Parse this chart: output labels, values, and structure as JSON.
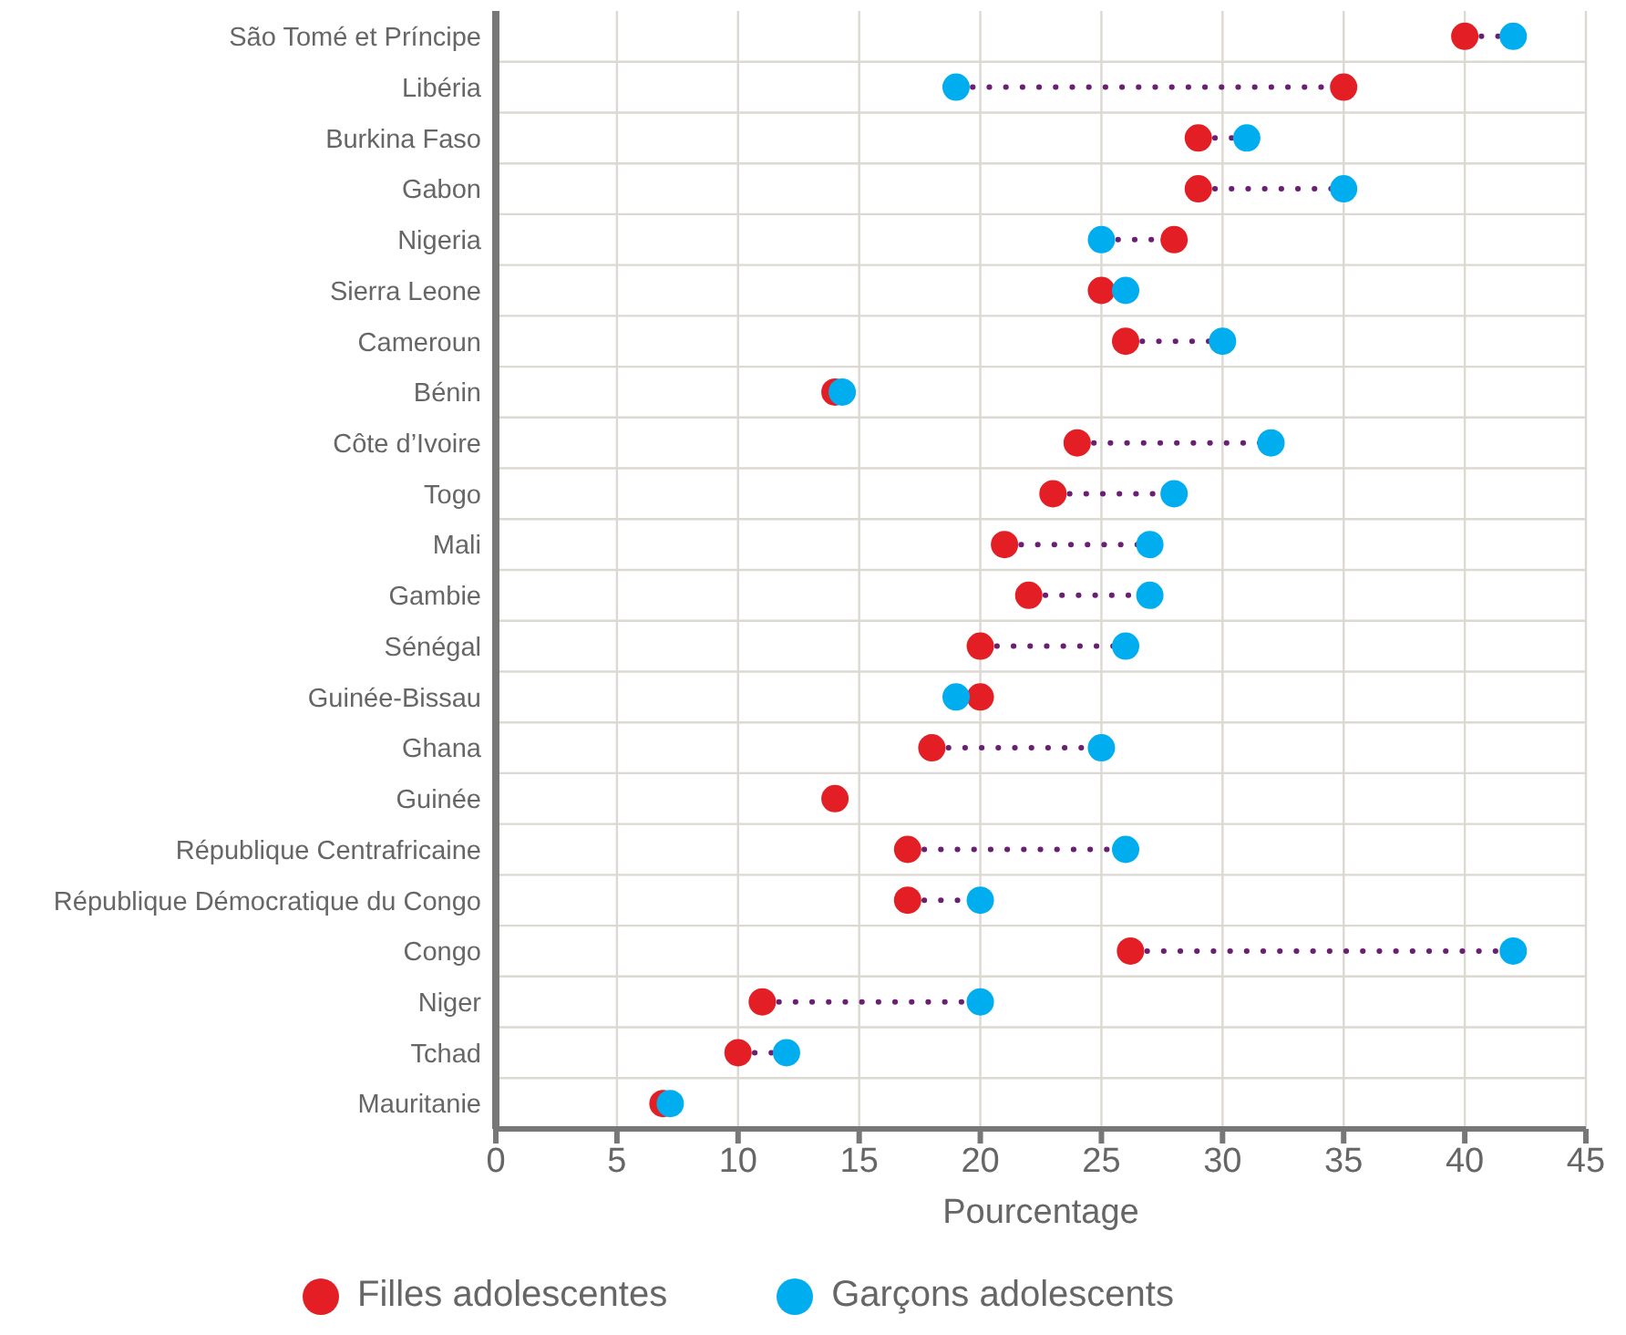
{
  "chart_data": {
    "type": "scatter",
    "orientation": "horizontal",
    "xlabel": "Pourcentage",
    "categories": [
      "São Tomé et Príncipe",
      "Libéria",
      "Burkina Faso",
      "Gabon",
      "Nigeria",
      "Sierra Leone",
      "Cameroun",
      "Bénin",
      "Côte d’Ivoire",
      "Togo",
      "Mali",
      "Gambie",
      "Sénégal",
      "Guinée-Bissau",
      "Ghana",
      "Guinée",
      "République Centrafricaine",
      "République Démocratique du Congo",
      "Congo",
      "Niger",
      "Tchad",
      "Mauritanie"
    ],
    "series": [
      {
        "name": "Filles adolescentes",
        "color": "#e31e24",
        "values": [
          40,
          35,
          29,
          29,
          28,
          25,
          26,
          14,
          24,
          23,
          21,
          22,
          20,
          20,
          18,
          14,
          17,
          17,
          26.2,
          11,
          10,
          6.9
        ]
      },
      {
        "name": "Garçons adolescents",
        "color": "#00aeef",
        "values": [
          42,
          19,
          31,
          35,
          25,
          26,
          30,
          14.3,
          32,
          28,
          27,
          27,
          26,
          19,
          25,
          null,
          26,
          20,
          42,
          20,
          12,
          7.2
        ]
      }
    ],
    "xlim": [
      0,
      45
    ],
    "xticks": [
      0,
      5,
      10,
      15,
      20,
      25,
      30,
      35,
      40,
      45
    ],
    "grid": true,
    "legend": "bottom",
    "marker": "circle"
  }
}
